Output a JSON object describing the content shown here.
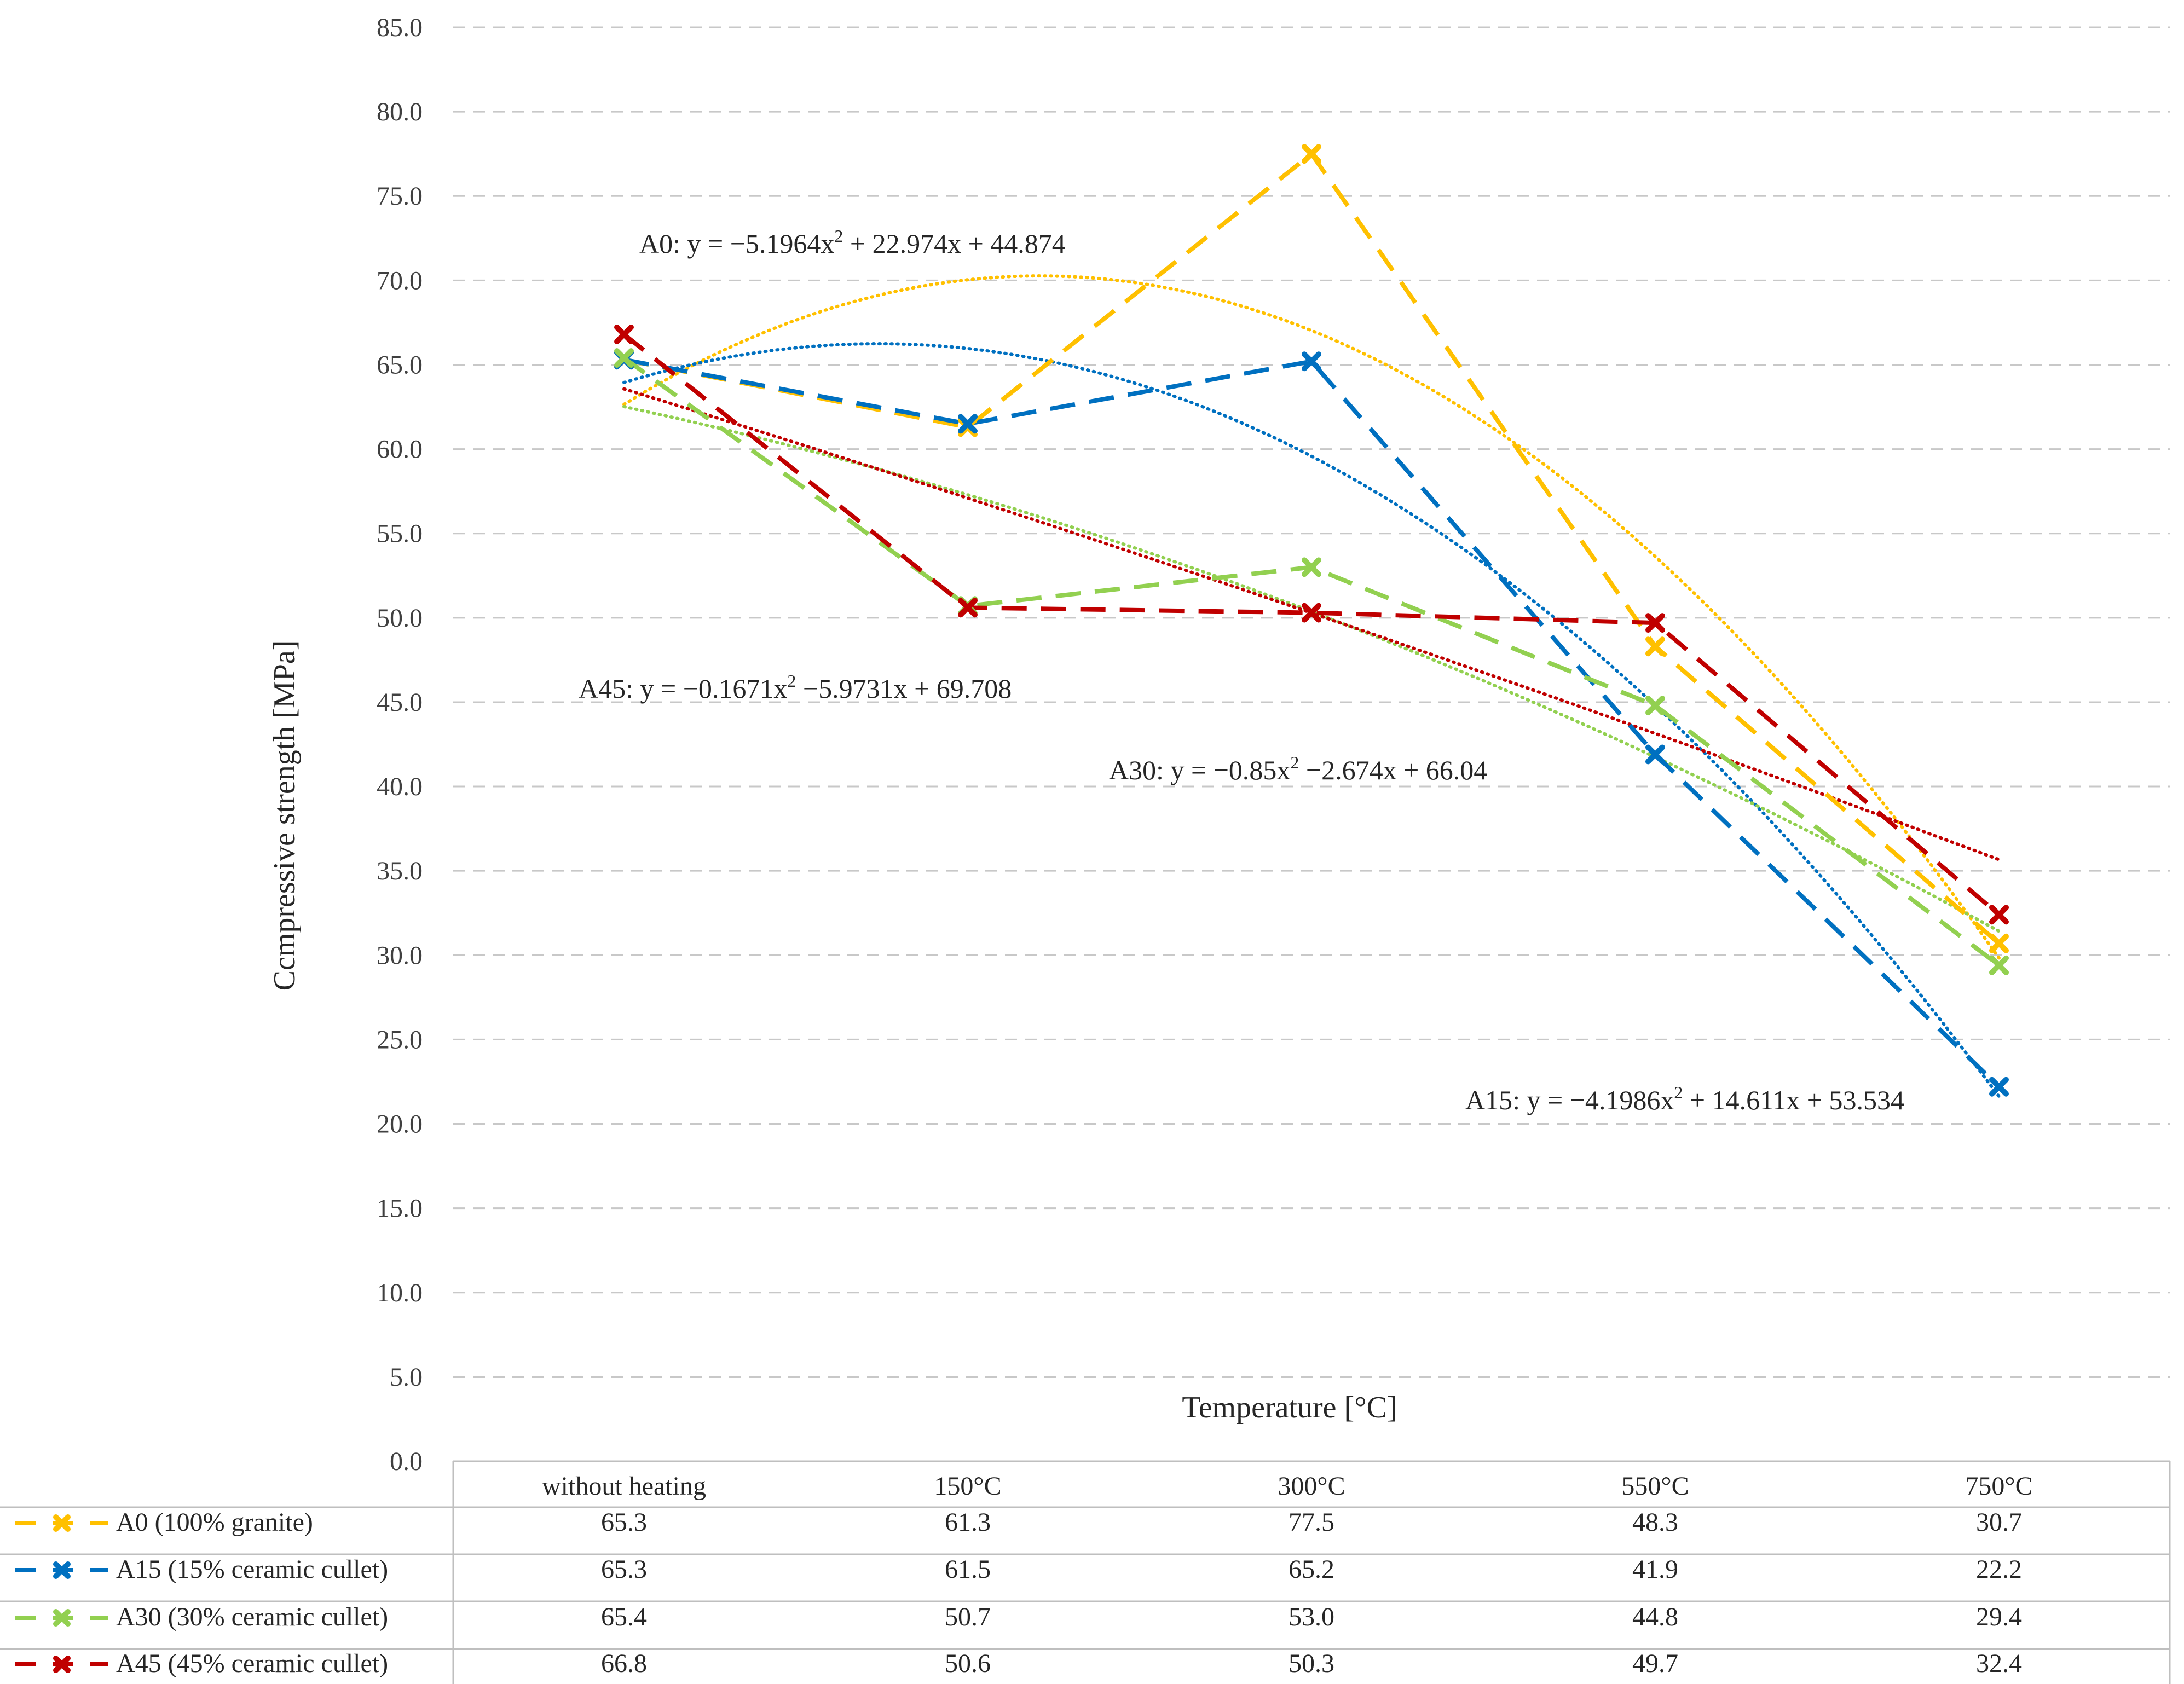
{
  "chart_data": {
    "type": "line",
    "title": "",
    "xlabel": "Temperature [°C]",
    "ylabel": "Ccmpressive strength [MPa]",
    "ylim": [
      0,
      85
    ],
    "y_ticks": [
      "0.0",
      "5.0",
      "10.0",
      "15.0",
      "20.0",
      "25.0",
      "30.0",
      "35.0",
      "40.0",
      "45.0",
      "50.0",
      "55.0",
      "60.0",
      "65.0",
      "70.0",
      "75.0",
      "80.0",
      "85.0"
    ],
    "categories": [
      "without heating",
      "150°C",
      "300°C",
      "550°C",
      "750°C"
    ],
    "grid": true,
    "legend": "data-table-bottom",
    "series": [
      {
        "name": "A0 (100% granite)",
        "color": "#FFC000",
        "values": [
          65.3,
          61.3,
          77.5,
          48.3,
          30.7
        ],
        "display_values": [
          "65.3",
          "61.3",
          "77.5",
          "48.3",
          "30.7"
        ],
        "trendline": {
          "a": -5.1964,
          "b": 22.974,
          "c": 44.874
        },
        "equation": {
          "prefix": "A0: y = −5.1964x",
          "exp": "2",
          "suffix": " + 22.974x + 44.874"
        }
      },
      {
        "name": "A15 (15% ceramic cullet)",
        "color": "#0070C0",
        "values": [
          65.3,
          61.5,
          65.2,
          41.9,
          22.2
        ],
        "display_values": [
          "65.3",
          "61.5",
          "65.2",
          "41.9",
          "22.2"
        ],
        "trendline": {
          "a": -4.1986,
          "b": 14.611,
          "c": 53.534
        },
        "equation": {
          "prefix": "A15: y = −4.1986x",
          "exp": "2",
          "suffix": " + 14.611x + 53.534"
        }
      },
      {
        "name": "A30 (30% ceramic cullet)",
        "color": "#92D050",
        "values": [
          65.4,
          50.7,
          53.0,
          44.8,
          29.4
        ],
        "display_values": [
          "65.4",
          "50.7",
          "53.0",
          "44.8",
          "29.4"
        ],
        "trendline": {
          "a": -0.85,
          "b": -2.674,
          "c": 66.04
        },
        "equation": {
          "prefix": "A30: y = −0.85x",
          "exp": "2",
          "suffix": " −2.674x + 66.04"
        }
      },
      {
        "name": "A45 (45% ceramic cullet)",
        "color": "#C00000",
        "values": [
          66.8,
          50.6,
          50.3,
          49.7,
          32.4
        ],
        "display_values": [
          "66.8",
          "50.6",
          "50.3",
          "49.7",
          "32.4"
        ],
        "trendline": {
          "a": -0.1671,
          "b": -5.9731,
          "c": 69.708
        },
        "equation": {
          "prefix": "A45: y = −0.1671x",
          "exp": "2",
          "suffix": " −5.9731x + 69.708"
        }
      }
    ]
  },
  "colors": {
    "grid": "#C8C8C8",
    "axis": "#BFBFBF",
    "text": "#262626"
  }
}
